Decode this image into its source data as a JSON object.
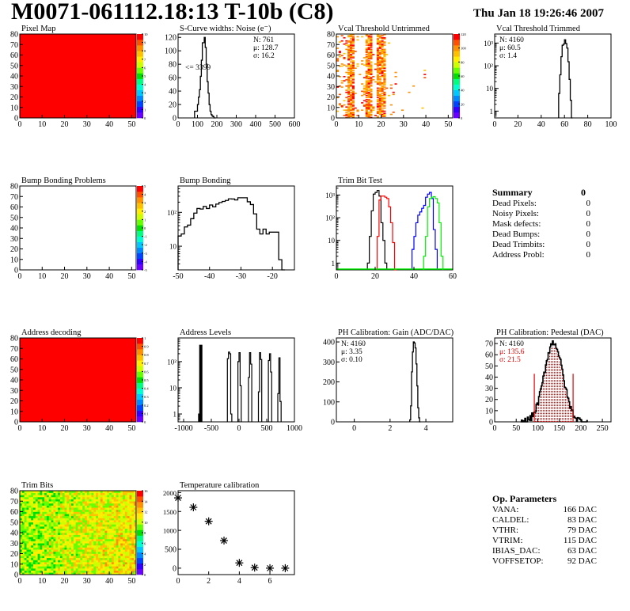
{
  "header": {
    "title": "M0071-061112.18:13 T-10b (C8)",
    "date": "Thu Jan 18 19:26:46 2007"
  },
  "summary": {
    "title": "Summary",
    "total": "0",
    "rows": [
      {
        "label": "Dead Pixels:",
        "value": "0"
      },
      {
        "label": "Noisy Pixels:",
        "value": "0"
      },
      {
        "label": "Mask defects:",
        "value": "0"
      },
      {
        "label": "Dead Bumps:",
        "value": "0"
      },
      {
        "label": "Dead Trimbits:",
        "value": "0"
      },
      {
        "label": "Address Probl:",
        "value": "0"
      }
    ]
  },
  "op_params": {
    "title": "Op. Parameters",
    "rows": [
      {
        "label": "VANA:",
        "value": "166 DAC"
      },
      {
        "label": "CALDEL:",
        "value": "83 DAC"
      },
      {
        "label": "VTHR:",
        "value": "79 DAC"
      },
      {
        "label": "VTRIM:",
        "value": "115 DAC"
      },
      {
        "label": "IBIAS_DAC:",
        "value": "63 DAC"
      },
      {
        "label": "VOFFSETOP:",
        "value": "92 DAC"
      }
    ]
  },
  "chart_data": [
    {
      "id": "pixel-map",
      "type": "heatmap",
      "title": "Pixel Map",
      "xlim": [
        0,
        52
      ],
      "ylim": [
        0,
        80
      ],
      "xticks": [
        0,
        10,
        20,
        30,
        40,
        50
      ],
      "yticks": [
        0,
        10,
        20,
        30,
        40,
        50,
        60,
        70,
        80
      ],
      "zlim": [
        0,
        10
      ],
      "zticks": [
        "0",
        "1",
        "2",
        "3",
        "4",
        "5",
        "6",
        "7",
        "8",
        "9",
        "10"
      ],
      "fill": "uniform",
      "value": 10
    },
    {
      "id": "scurve-noise",
      "type": "bar",
      "title": "S-Curve widths: Noise (e⁻)",
      "xlim": [
        0,
        600
      ],
      "ylim": [
        0,
        125
      ],
      "xticks": [
        0,
        100,
        200,
        300,
        400,
        500,
        600
      ],
      "yticks": [
        0,
        20,
        40,
        60,
        80,
        100,
        120
      ],
      "bins_x": [
        85,
        95,
        100,
        105,
        110,
        115,
        120,
        125,
        130,
        135,
        140,
        145,
        150,
        155,
        160,
        165,
        170,
        175,
        180,
        185
      ],
      "values": [
        10,
        10,
        20,
        31,
        42,
        62,
        86,
        112,
        112,
        120,
        105,
        80,
        54,
        37,
        20,
        10,
        5,
        3,
        2,
        0
      ],
      "stats": [
        "N:  761",
        "μ: 128.7",
        "σ: 16.2"
      ],
      "annotation": "<= 3399"
    },
    {
      "id": "vcal-untrimmed",
      "type": "heatmap",
      "title": "Vcal Threshold Untrimmed",
      "xlim": [
        0,
        52
      ],
      "ylim": [
        0,
        80
      ],
      "xticks": [
        0,
        10,
        20,
        30,
        40,
        50
      ],
      "yticks": [
        0,
        10,
        20,
        30,
        40,
        50,
        60,
        70,
        80
      ],
      "zlim": [
        0,
        120
      ],
      "zticks": [
        "0",
        "20",
        "40",
        "60",
        "80",
        "100",
        "120"
      ],
      "fill": "sparse-columns",
      "dense_columns": [
        [
          5,
          8
        ],
        [
          13,
          16
        ],
        [
          18,
          22
        ]
      ]
    },
    {
      "id": "vcal-trimmed",
      "type": "bar",
      "title": "Vcal Threshold Trimmed",
      "log_y": true,
      "xlim": [
        0,
        100
      ],
      "ylim": [
        0.5,
        2500
      ],
      "xticks": [
        0,
        20,
        40,
        60,
        80,
        100
      ],
      "yticks": [
        "1",
        "10",
        "10²",
        "10³"
      ],
      "bins_x": [
        55,
        56,
        57,
        58,
        59,
        60,
        61,
        62,
        63,
        64,
        65,
        66
      ],
      "values": [
        6,
        40,
        250,
        800,
        900,
        1400,
        950,
        600,
        150,
        25,
        3,
        0
      ],
      "stats": [
        "N: 4160",
        "μ: 60.5",
        "σ:  1.4"
      ]
    },
    {
      "id": "bump-problems",
      "type": "heatmap",
      "title": "Bump Bonding Problems",
      "xlim": [
        0,
        52
      ],
      "ylim": [
        0,
        80
      ],
      "xticks": [
        0,
        10,
        20,
        30,
        40,
        50
      ],
      "yticks": [
        0,
        10,
        20,
        30,
        40,
        50,
        60,
        70,
        80
      ],
      "zlim": [
        -5,
        5
      ],
      "zticks": [
        "-5",
        "-4",
        "-3",
        "-2",
        "-1",
        "0",
        "1",
        "2",
        "3",
        "4",
        "5"
      ],
      "fill": "empty"
    },
    {
      "id": "bump-bonding",
      "type": "bar",
      "title": "Bump Bonding",
      "log_y": true,
      "xlim": [
        -50,
        -13
      ],
      "ylim": [
        2,
        600
      ],
      "xticks": [
        -50,
        -40,
        -30,
        -20
      ],
      "yticks": [
        "10",
        "10²"
      ],
      "bins_x": [
        -50,
        -49,
        -48,
        -47,
        -46,
        -45,
        -44,
        -43,
        -42,
        -41,
        -40,
        -39,
        -38,
        -37,
        -36,
        -35,
        -34,
        -33,
        -32,
        -31,
        -30,
        -29,
        -28,
        -27,
        -26,
        -25,
        -24,
        -23,
        -22,
        -21,
        -20,
        -19,
        -18,
        -17
      ],
      "values": [
        20,
        23,
        37,
        42,
        65,
        95,
        130,
        125,
        150,
        130,
        165,
        145,
        175,
        195,
        210,
        225,
        250,
        248,
        232,
        270,
        270,
        270,
        205,
        170,
        90,
        32,
        23,
        32,
        23,
        26,
        26,
        26,
        4,
        2
      ],
      "edge_x": -16
    },
    {
      "id": "trim-bit-test",
      "type": "bar",
      "title": "Trim Bit Test",
      "log_y": true,
      "xlim": [
        0,
        60
      ],
      "ylim": [
        0.5,
        2500
      ],
      "xticks": [
        0,
        20,
        40,
        60
      ],
      "yticks": [
        "1",
        "10",
        "10²",
        "10³"
      ],
      "series": [
        {
          "name": "black",
          "color": "#000000",
          "x0": 16,
          "values": [
            1,
            15,
            200,
            1100,
            1300,
            1600,
            900,
            60,
            10,
            1
          ]
        },
        {
          "name": "red",
          "color": "#ff0000",
          "x0": 21,
          "values": [
            15,
            600,
            900,
            900,
            800,
            700,
            300,
            60,
            8,
            0.2
          ]
        },
        {
          "name": "blue",
          "color": "#0000ff",
          "x0": 39,
          "values": [
            4,
            15,
            60,
            130,
            180,
            260,
            350,
            800,
            1100,
            1300,
            700,
            30,
            4
          ]
        },
        {
          "name": "green",
          "color": "#00ee00",
          "x0": 45,
          "values": [
            2,
            15,
            300,
            700,
            800,
            850,
            700,
            450,
            60,
            2
          ]
        }
      ]
    },
    {
      "id": "address-decoding",
      "type": "heatmap",
      "title": "Address decoding",
      "xlim": [
        0,
        52
      ],
      "ylim": [
        0,
        80
      ],
      "xticks": [
        0,
        10,
        20,
        30,
        40,
        50
      ],
      "yticks": [
        0,
        10,
        20,
        30,
        40,
        50,
        60,
        70,
        80
      ],
      "zlim": [
        0,
        1
      ],
      "zticks": [
        "0",
        "0.1",
        "0.2",
        "0.3",
        "0.4",
        "0.5",
        "0.6",
        "0.7",
        "0.8",
        "0.9",
        "1"
      ],
      "fill": "uniform",
      "value": 1
    },
    {
      "id": "address-levels",
      "type": "bar",
      "title": "Address Levels",
      "log_y": true,
      "xlim": [
        -1100,
        1000
      ],
      "ylim": [
        0.5,
        800
      ],
      "xticks": [
        -1000,
        -500,
        0,
        500,
        1000
      ],
      "yticks": [
        "1",
        "10",
        "10²"
      ],
      "peaks": [
        {
          "x": -700,
          "values": [
            1,
            420,
            420
          ]
        },
        {
          "x": -170,
          "values": [
            130,
            230,
            200,
            1
          ]
        },
        {
          "x": 10,
          "values": [
            100,
            220,
            12
          ]
        },
        {
          "x": 200,
          "values": [
            25,
            220,
            80
          ]
        },
        {
          "x": 380,
          "values": [
            7,
            220,
            120
          ]
        },
        {
          "x": 560,
          "values": [
            110,
            200,
            40
          ]
        },
        {
          "x": 730,
          "values": [
            6,
            140,
            3
          ]
        }
      ]
    },
    {
      "id": "ph-gain",
      "type": "bar",
      "title": "PH Calibration: Gain (ADC/DAC)",
      "xlim": [
        -1,
        5.5
      ],
      "ylim": [
        0,
        420
      ],
      "xticks": [
        0,
        2,
        4
      ],
      "yticks": [
        0,
        100,
        200,
        300,
        400
      ],
      "bins_x": [
        3.1,
        3.15,
        3.2,
        3.25,
        3.3,
        3.35,
        3.4,
        3.45,
        3.5,
        3.55,
        3.6,
        3.65
      ],
      "values": [
        10,
        80,
        250,
        350,
        400,
        395,
        370,
        290,
        180,
        70,
        20,
        0
      ],
      "stats": [
        "N: 4160",
        "μ: 3.35",
        "σ: 0.10"
      ]
    },
    {
      "id": "ph-pedestal",
      "type": "bar",
      "title": "PH Calibration: Pedestal (DAC)",
      "xlim": [
        0,
        270
      ],
      "ylim": [
        0,
        75
      ],
      "xticks": [
        0,
        50,
        100,
        150,
        200,
        250
      ],
      "yticks": [
        0,
        10,
        20,
        30,
        40,
        50,
        60,
        70
      ],
      "mean": 135.6,
      "sigma": 21.5,
      "peak": 71,
      "range": [
        60,
        215
      ],
      "fit_lines": [
        92,
        182
      ],
      "stats": [
        "N: 4160",
        "μ: 135.6",
        "σ: 21.5"
      ]
    },
    {
      "id": "trim-bits",
      "type": "heatmap",
      "title": "Trim Bits",
      "xlim": [
        0,
        52
      ],
      "ylim": [
        0,
        80
      ],
      "xticks": [
        0,
        10,
        20,
        30,
        40,
        50
      ],
      "yticks": [
        0,
        10,
        20,
        30,
        40,
        50,
        60,
        70,
        80
      ],
      "zlim": [
        0,
        16
      ],
      "zticks": [
        "0",
        "2",
        "4",
        "6",
        "8",
        "10",
        "12",
        "14",
        "16"
      ],
      "fill": "noise",
      "mean_low": 9.5,
      "mean_high": 11.5
    },
    {
      "id": "temperature-calibration",
      "type": "scatter",
      "title": "Temperature calibration",
      "xlim": [
        0,
        7.6
      ],
      "ylim": [
        -170,
        2050
      ],
      "xticks": [
        0,
        2,
        4,
        6
      ],
      "yticks": [
        0,
        500,
        1000,
        1500,
        2000
      ],
      "x": [
        0,
        1,
        2,
        3,
        4,
        5,
        6,
        7
      ],
      "y": [
        1860,
        1610,
        1240,
        730,
        140,
        15,
        0,
        0
      ]
    }
  ]
}
